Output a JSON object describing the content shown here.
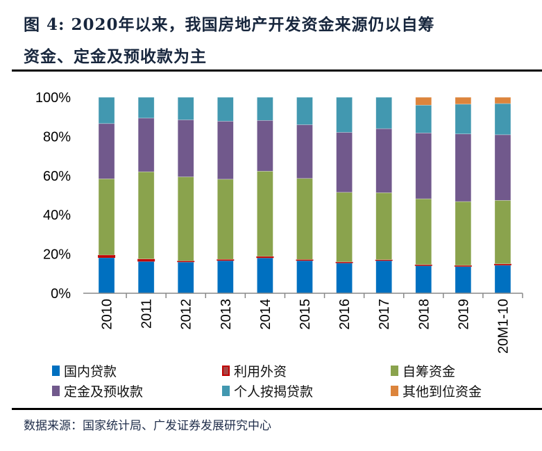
{
  "title": {
    "line1": "图  4:  2020年以来，我国房地产开发资金来源仍以自筹",
    "line2": "资金、定金及预收款为主"
  },
  "source": "数据来源：国家统计局、广发证券发展研究中心",
  "chart_data": {
    "type": "bar",
    "stacked": true,
    "categories": [
      "2010",
      "2011",
      "2012",
      "2013",
      "2014",
      "2015",
      "2016",
      "2017",
      "2018",
      "2019",
      "20M1-10"
    ],
    "ylim": [
      0,
      100
    ],
    "yticks": [
      "0%",
      "20%",
      "40%",
      "60%",
      "80%",
      "100%"
    ],
    "grid": false,
    "legend_position": "bottom",
    "series": [
      {
        "name": "国内贷款",
        "color": "#0070c0",
        "values": [
          18.1,
          16.2,
          15.9,
          16.6,
          18.0,
          16.6,
          15.4,
          16.6,
          14.0,
          13.6,
          14.3
        ]
      },
      {
        "name": "利用外资",
        "color": "#c00000",
        "values": [
          1.4,
          1.3,
          0.6,
          0.7,
          0.8,
          0.6,
          0.6,
          0.5,
          0.6,
          0.6,
          0.7
        ]
      },
      {
        "name": "自筹资金",
        "color": "#8aa34d",
        "values": [
          38.9,
          44.5,
          42.9,
          40.9,
          43.5,
          41.4,
          35.5,
          34.2,
          33.6,
          32.6,
          32.4
        ]
      },
      {
        "name": "定金及预收款",
        "color": "#71598c",
        "values": [
          28.2,
          27.4,
          29.1,
          29.6,
          25.9,
          27.4,
          30.6,
          32.7,
          33.6,
          34.5,
          33.5
        ]
      },
      {
        "name": "个人按揭贷款",
        "color": "#4298b0",
        "values": [
          13.4,
          10.6,
          11.5,
          12.2,
          11.8,
          14.0,
          17.9,
          16.0,
          14.2,
          15.2,
          15.9
        ]
      },
      {
        "name": "其他到位资金",
        "color": "#dc843c",
        "values": [
          0,
          0,
          0,
          0,
          0,
          0,
          0,
          0,
          4.0,
          3.5,
          3.2
        ]
      }
    ]
  }
}
